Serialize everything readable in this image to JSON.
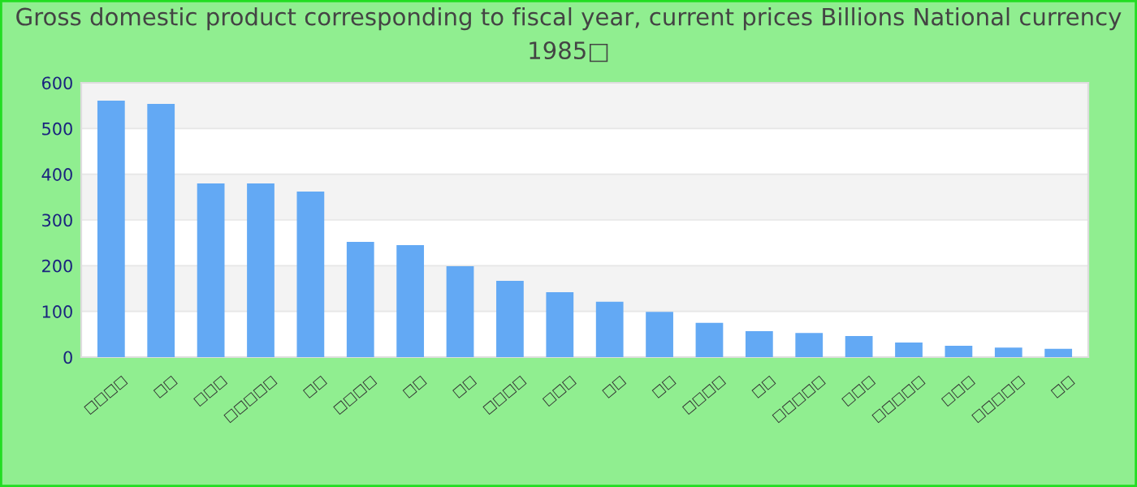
{
  "chart_data": {
    "type": "bar",
    "title": "Gross domestic product corresponding to fiscal year, current prices Billions National currency 1985□",
    "categories": [
      "□□□□",
      "□□",
      "□□□",
      "□□□□□",
      "□□",
      "□□□□",
      "□□",
      "□□",
      "□□□□",
      "□□□",
      "□□",
      "□□",
      "□□□□",
      "□□",
      "□□□□□",
      "□□□",
      "□□□□□",
      "□□□",
      "□□□□□",
      "□□"
    ],
    "values": [
      561,
      554,
      380,
      380,
      362,
      252,
      245,
      199,
      167,
      142,
      121,
      99,
      75,
      57,
      53,
      46,
      32,
      25,
      21,
      18
    ],
    "color": "#63a9f4",
    "ylim": [
      0,
      600
    ],
    "yticks": [
      0,
      100,
      200,
      300,
      400,
      500,
      600
    ],
    "grid": "y",
    "legend": false
  }
}
